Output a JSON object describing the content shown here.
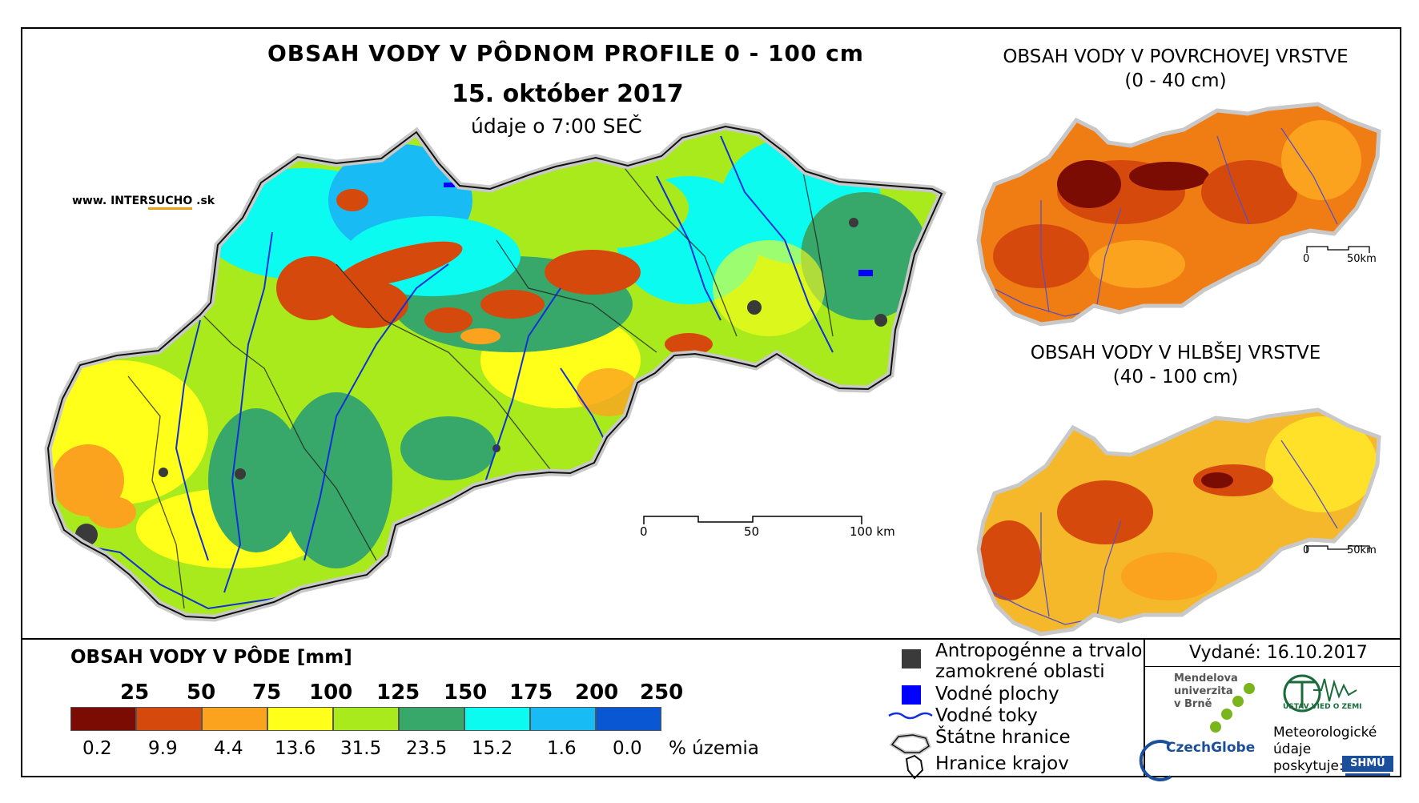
{
  "titles": {
    "main": "OBSAH VODY V PÔDNOM PROFILE 0 - 100 cm",
    "date": "15. október 2017",
    "time": "údaje o 7:00 SEČ",
    "surface_line1": "OBSAH VODY V POVRCHOVEJ VRSTVE",
    "surface_line2": "(0 - 40 cm)",
    "deep_line1": "OBSAH VODY V HLBŠEJ VRSTVE",
    "deep_line2": "(40 - 100 cm)"
  },
  "website": {
    "prefix": "www. INTER",
    "highlight": "SUCHO",
    "suffix": " .sk"
  },
  "scales": {
    "main": {
      "zero": "0",
      "mid": "50",
      "end": "100 km"
    },
    "small": {
      "zero": "0",
      "end": "50km"
    }
  },
  "legend": {
    "title": "OBSAH VODY V PÔDE [mm]",
    "thresholds": [
      "25",
      "50",
      "75",
      "100",
      "125",
      "150",
      "175",
      "200",
      "250"
    ],
    "classes": [
      {
        "color": "#7a0c04",
        "percent": "0.2"
      },
      {
        "color": "#d6490c",
        "percent": "9.9"
      },
      {
        "color": "#fba21f",
        "percent": "4.4"
      },
      {
        "color": "#ffff1a",
        "percent": "13.6"
      },
      {
        "color": "#a8ea1c",
        "percent": "31.5"
      },
      {
        "color": "#37a86a",
        "percent": "23.5"
      },
      {
        "color": "#0bfbf0",
        "percent": "15.2"
      },
      {
        "color": "#19bbf5",
        "percent": "1.6"
      },
      {
        "color": "#0a57d4",
        "percent": "0.0"
      }
    ],
    "percent_unit": "% územia"
  },
  "map_legend": {
    "urban_line1": "Antropogénne a trvalo",
    "urban_line2": "zamokrené oblasti",
    "water_bodies": "Vodné plochy",
    "rivers": "Vodné toky",
    "border": "Štátne hranice",
    "regions": "Hranice krajov"
  },
  "footer": {
    "issued": "Vydané: 16.10.2017",
    "mendel": [
      "Mendelova",
      "univerzita",
      "v Brně"
    ],
    "czechglobe": "CzechGlobe",
    "ustav": "ÚSTAV VIED O ZEMI",
    "meteo": [
      "Meteorologické",
      "údaje",
      "poskytuje:"
    ],
    "shmu": "SHMÚ"
  },
  "colors": {
    "urban": "#3a3a3a",
    "water": "#0000ff",
    "river": "#1230d8",
    "czechglobe_green": "#7ab51d",
    "czechglobe_blue": "#1b4f9c"
  }
}
